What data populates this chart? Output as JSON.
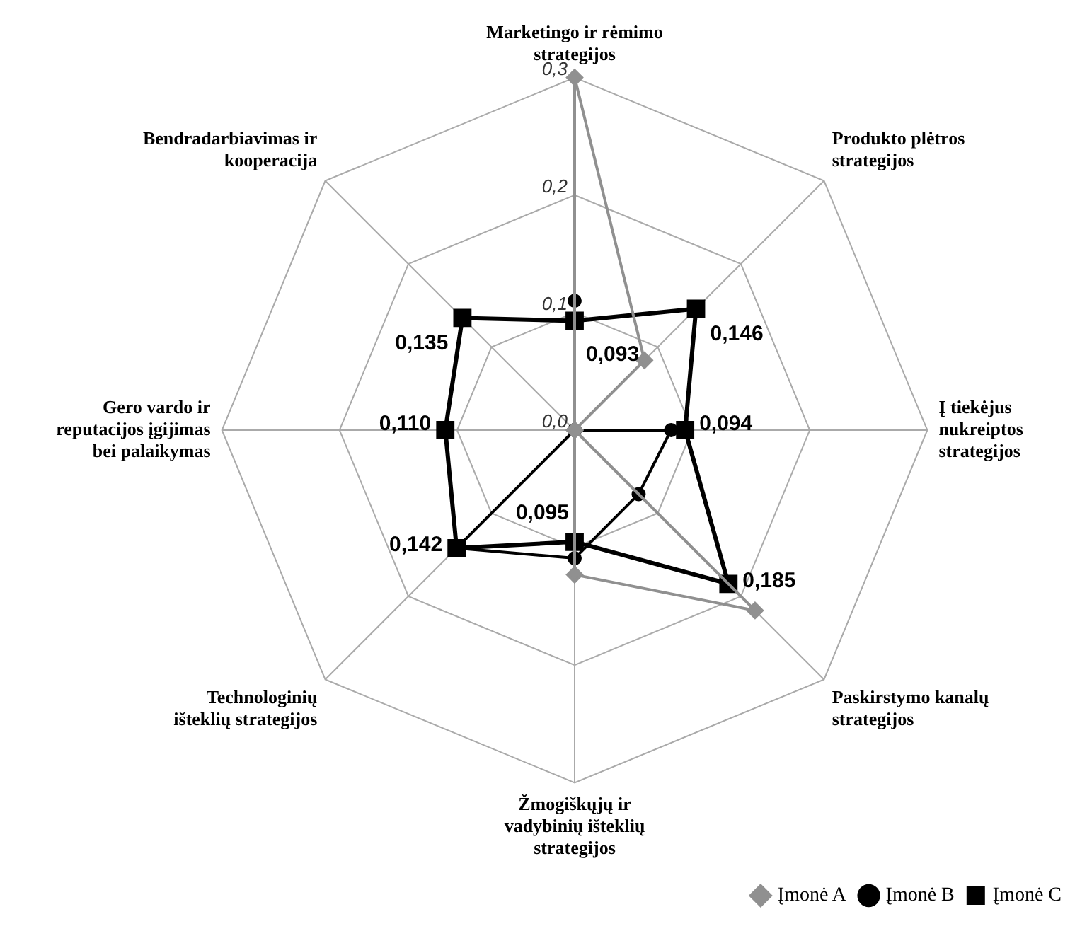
{
  "chart_data": {
    "type": "radar",
    "categories": [
      "Marketingo ir rėmimo strategijos",
      "Produkto plėtros strategijos",
      "Į tiekėjus nukreiptos strategijos",
      "Paskirstymo kanalų strategijos",
      "Žmogiškųjų ir vadybinių išteklių strategijos",
      "Technologinių išteklių strategijos",
      "Gero vardo ir reputacijos įgijimas bei palaikymas",
      "Bendradarbiavimas ir kooperacija"
    ],
    "series": [
      {
        "name": "Įmonė A",
        "color": "#909090",
        "marker": "diamond",
        "values": [
          0.3,
          0.084,
          0,
          0.217,
          0.123,
          0,
          0,
          0
        ]
      },
      {
        "name": "Įmonė B",
        "color": "#000000",
        "marker": "circle",
        "values": [
          0.11,
          0,
          0.082,
          0.077,
          0.109,
          0.142,
          0,
          0
        ]
      },
      {
        "name": "Įmonė C",
        "color": "#000000",
        "marker": "square",
        "values": [
          0.093,
          0.146,
          0.094,
          0.185,
          0.095,
          0.142,
          0.11,
          0.135
        ],
        "value_labels": [
          "0,093",
          "0,146",
          "0,094",
          "0,185",
          "0,095",
          "0,142",
          "0,110",
          "0,135"
        ]
      }
    ],
    "ylim": [
      0,
      0.3
    ],
    "yticks": [
      {
        "value": 0,
        "label": "0,0"
      },
      {
        "value": 0.1,
        "label": "0,1"
      },
      {
        "value": 0.2,
        "label": "0,2"
      },
      {
        "value": 0.3,
        "label": "0,3"
      }
    ],
    "grid": true,
    "legend": "bottom right"
  }
}
